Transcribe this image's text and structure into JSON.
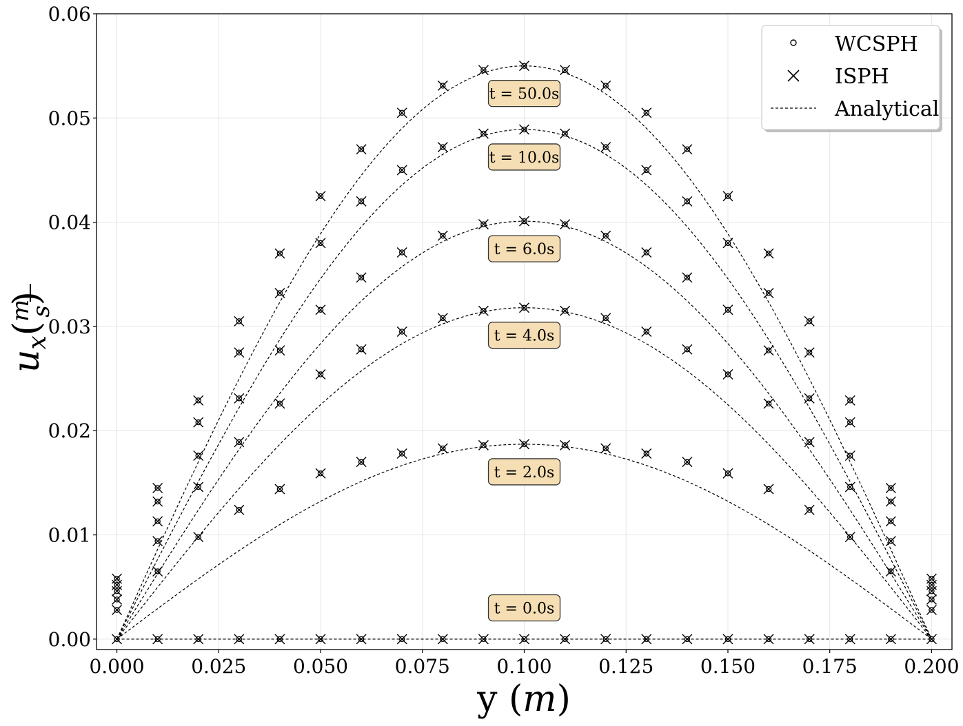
{
  "chart_data": {
    "type": "line",
    "xlabel": "y (m)",
    "ylabel": "u_x (m/s)",
    "xlim": [
      -0.005,
      0.205
    ],
    "ylim": [
      -0.001,
      0.06
    ],
    "x_ticks": [
      "0.000",
      "0.025",
      "0.050",
      "0.075",
      "0.100",
      "0.125",
      "0.150",
      "0.175",
      "0.200"
    ],
    "y_ticks": [
      "0.00",
      "0.01",
      "0.02",
      "0.03",
      "0.04",
      "0.05",
      "0.06"
    ],
    "grid": true,
    "legend_placement": "top-right",
    "legend": [
      "WCSPH",
      "ISPH",
      "Analytical"
    ],
    "sample_y": [
      0.0,
      0.01,
      0.02,
      0.03,
      0.04,
      0.05,
      0.06,
      0.07,
      0.08,
      0.09,
      0.1,
      0.11,
      0.12,
      0.13,
      0.14,
      0.15,
      0.16,
      0.17,
      0.18,
      0.19,
      0.2
    ],
    "series": [
      {
        "annotation": "t = 0.0s",
        "values": [
          0.0,
          0.0,
          0.0,
          0.0,
          0.0,
          0.0,
          0.0,
          0.0,
          0.0,
          0.0,
          0.0,
          0.0,
          0.0,
          0.0,
          0.0,
          0.0,
          0.0,
          0.0,
          0.0,
          0.0,
          0.0
        ]
      },
      {
        "annotation": "t = 2.0s",
        "values": [
          0.0028,
          0.0065,
          0.0098,
          0.0124,
          0.0144,
          0.0159,
          0.017,
          0.0178,
          0.0183,
          0.0186,
          0.0187,
          0.0186,
          0.0183,
          0.0178,
          0.017,
          0.0159,
          0.0144,
          0.0124,
          0.0098,
          0.0065,
          0.0028
        ]
      },
      {
        "annotation": "t = 4.0s",
        "values": [
          0.0038,
          0.0094,
          0.0146,
          0.0189,
          0.0226,
          0.0254,
          0.0278,
          0.0295,
          0.0308,
          0.0315,
          0.0318,
          0.0315,
          0.0308,
          0.0295,
          0.0278,
          0.0254,
          0.0226,
          0.0189,
          0.0146,
          0.0094,
          0.0038
        ]
      },
      {
        "annotation": "t = 6.0s",
        "values": [
          0.0046,
          0.0113,
          0.0176,
          0.0231,
          0.0277,
          0.0316,
          0.0347,
          0.0371,
          0.0387,
          0.0398,
          0.0401,
          0.0398,
          0.0387,
          0.0371,
          0.0347,
          0.0316,
          0.0277,
          0.0231,
          0.0176,
          0.0113,
          0.0046
        ]
      },
      {
        "annotation": "t = 10.0s",
        "values": [
          0.0052,
          0.0132,
          0.0208,
          0.0275,
          0.0332,
          0.038,
          0.042,
          0.045,
          0.0472,
          0.0485,
          0.0489,
          0.0485,
          0.0472,
          0.045,
          0.042,
          0.038,
          0.0332,
          0.0275,
          0.0208,
          0.0132,
          0.0052
        ]
      },
      {
        "annotation": "t = 50.0s",
        "values": [
          0.0058,
          0.0145,
          0.0229,
          0.0305,
          0.037,
          0.0425,
          0.047,
          0.0505,
          0.0531,
          0.0546,
          0.055,
          0.0546,
          0.0531,
          0.0505,
          0.047,
          0.0425,
          0.037,
          0.0305,
          0.0229,
          0.0145,
          0.0058
        ]
      }
    ]
  }
}
